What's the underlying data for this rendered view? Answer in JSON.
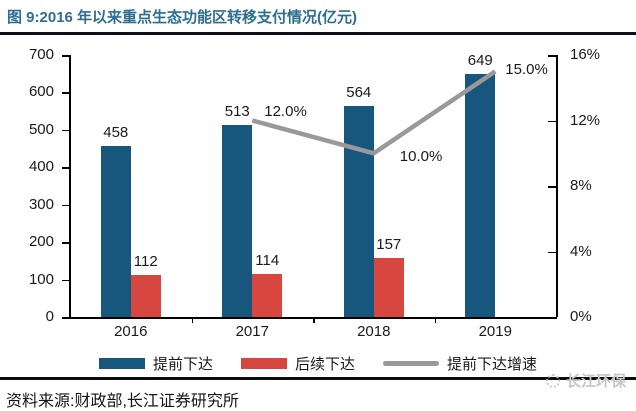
{
  "header": {
    "title": "图 9:2016 年以来重点生态功能区转移支付情况(亿元)"
  },
  "chart_data": {
    "type": "bar",
    "subtype": "combo-bar-line-dual-axis",
    "title": "2016 年以来重点生态功能区转移支付情况(亿元)",
    "categories": [
      "2016",
      "2017",
      "2018",
      "2019"
    ],
    "series": [
      {
        "name": "提前下达",
        "type": "bar",
        "axis": "left",
        "color": "#17577E",
        "values": [
          458,
          513,
          564,
          649
        ]
      },
      {
        "name": "后续下达",
        "type": "bar",
        "axis": "left",
        "color": "#D8473F",
        "values": [
          112,
          114,
          157,
          null
        ]
      },
      {
        "name": "提前下达增速",
        "type": "line",
        "axis": "right",
        "color": "#999999",
        "values": [
          null,
          0.12,
          0.1,
          0.15
        ],
        "labels": [
          null,
          "12.0%",
          "10.0%",
          "15.0%"
        ]
      }
    ],
    "left_axis": {
      "min": 0,
      "max": 700,
      "step": 100,
      "ticks": [
        "700",
        "600",
        "500",
        "400",
        "300",
        "200",
        "100",
        "0"
      ]
    },
    "right_axis": {
      "min": 0,
      "max": 0.16,
      "step": 0.04,
      "ticks": [
        "16%",
        "12%",
        "8%",
        "4%",
        "0%"
      ]
    },
    "grid": false,
    "legend_position": "bottom"
  },
  "legend": {
    "items": [
      {
        "label": "提前下达",
        "shape": "rect",
        "color": "#17577E"
      },
      {
        "label": "后续下达",
        "shape": "rect",
        "color": "#D8473F"
      },
      {
        "label": "提前下达增速",
        "shape": "line",
        "color": "#999999"
      }
    ]
  },
  "watermark": {
    "text": "长江环保"
  },
  "footer": {
    "source": "资料来源:财政部,长江证券研究所"
  }
}
